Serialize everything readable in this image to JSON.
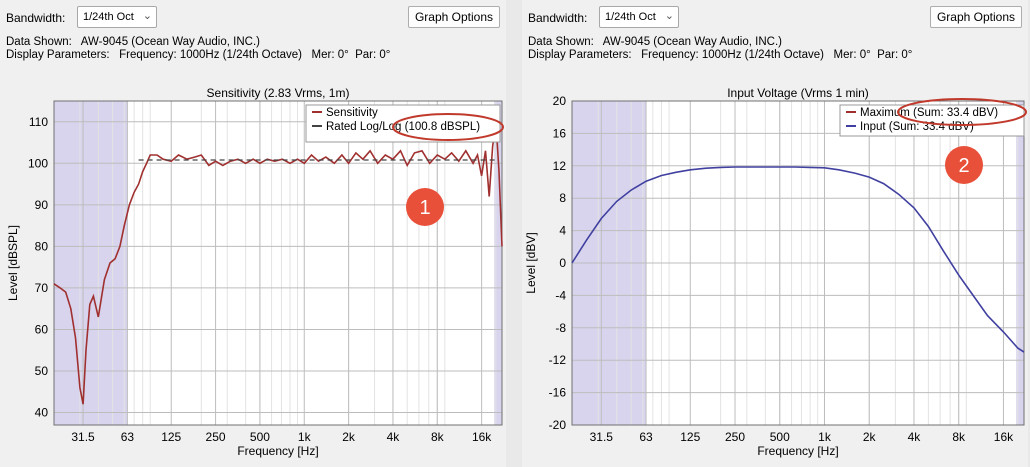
{
  "panels": [
    {
      "bandwidth_label": "Bandwidth:",
      "bandwidth_value": "1/24th Oct",
      "graph_options": "Graph Options",
      "data_shown": "Data Shown:   AW-9045 (Ocean Way Audio, INC.)",
      "display_params": "Display Parameters:   Frequency: 1000Hz (1/24th Octave)   Mer: 0°  Par: 0°"
    },
    {
      "bandwidth_label": "Bandwidth:",
      "bandwidth_value": "1/24th Oct",
      "graph_options": "Graph Options",
      "data_shown": "Data Shown:   AW-9045 (Ocean Way Audio, INC.)",
      "display_params": "Display Parameters:   Frequency: 1000Hz (1/24th Octave)   Mer: 0°  Par: 0°"
    }
  ],
  "chart_data": [
    {
      "type": "line",
      "title": "Sensitivity (2.83 Vrms, 1m)",
      "xlabel": "Frequency [Hz]",
      "ylabel": "Level [dBSPL]",
      "x_scale": "log",
      "xlim": [
        20,
        22000
      ],
      "ylim": [
        37,
        115
      ],
      "x_ticks": [
        31.5,
        63,
        125,
        250,
        500,
        1000,
        2000,
        4000,
        8000,
        16000
      ],
      "x_tick_labels": [
        "31.5",
        "63",
        "125",
        "250",
        "500",
        "1k",
        "2k",
        "4k",
        "8k",
        "16k"
      ],
      "y_ticks": [
        40,
        50,
        60,
        70,
        80,
        90,
        100,
        110
      ],
      "y_tick_labels": [
        "40",
        "50",
        "60",
        "70",
        "80",
        "90",
        "100",
        "110"
      ],
      "shaded_ranges": [
        [
          20,
          63
        ],
        [
          19500,
          22000
        ]
      ],
      "legend_position": "top-right",
      "series": [
        {
          "name": "Sensitivity",
          "color": "#a0302f",
          "style": "solid",
          "x": [
            20,
            22,
            24,
            26,
            28,
            30,
            31.5,
            33,
            35,
            37,
            40,
            44,
            48,
            52,
            56,
            60,
            65,
            70,
            75,
            80,
            85,
            90,
            100,
            110,
            125,
            140,
            160,
            180,
            200,
            225,
            250,
            280,
            315,
            355,
            400,
            450,
            500,
            560,
            630,
            710,
            800,
            900,
            1000,
            1120,
            1250,
            1400,
            1600,
            1800,
            2000,
            2240,
            2500,
            2800,
            3150,
            3550,
            4000,
            4500,
            5000,
            5600,
            6300,
            7100,
            8000,
            9000,
            10000,
            11200,
            12500,
            14000,
            15000,
            16000,
            17000,
            18000,
            19000,
            20000,
            21000,
            22000
          ],
          "y": [
            71,
            70,
            69,
            65,
            58,
            46,
            42,
            55,
            66,
            68,
            63,
            72,
            76,
            77,
            80,
            85,
            90,
            93,
            95,
            98,
            100,
            102,
            102,
            101,
            100.5,
            102,
            101,
            101.5,
            102,
            99.5,
            100.5,
            99.5,
            100.5,
            101,
            100,
            101,
            100,
            101,
            100.5,
            101,
            100,
            101,
            100,
            102,
            100.5,
            101.5,
            100,
            102,
            100,
            102.5,
            101,
            103,
            100,
            102,
            101,
            103,
            99.5,
            102.5,
            103,
            100,
            102,
            101,
            102.5,
            100.5,
            103,
            100,
            102,
            97,
            103,
            92,
            104,
            110,
            98,
            80
          ]
        },
        {
          "name": "Rated Log/Log (100.8 dBSPL)",
          "color": "#444444",
          "style": "dashed",
          "x": [
            75,
            20000
          ],
          "y": [
            100.8,
            100.8
          ]
        }
      ],
      "annotation": "1"
    },
    {
      "type": "line",
      "title": "Input Voltage (Vrms 1 min)",
      "xlabel": "Frequency [Hz]",
      "ylabel": "Level [dBV]",
      "x_scale": "log",
      "xlim": [
        20,
        22000
      ],
      "ylim": [
        -20,
        20
      ],
      "x_ticks": [
        31.5,
        63,
        125,
        250,
        500,
        1000,
        2000,
        4000,
        8000,
        16000
      ],
      "x_tick_labels": [
        "31.5",
        "63",
        "125",
        "250",
        "500",
        "1k",
        "2k",
        "4k",
        "8k",
        "16k"
      ],
      "y_ticks": [
        -20,
        -16,
        -12,
        -8,
        -4,
        0,
        4,
        8,
        12,
        16,
        20
      ],
      "y_tick_labels": [
        "-20",
        "-16",
        "-12",
        "-8",
        "-4",
        "0",
        "4",
        "8",
        "12",
        "16",
        "20"
      ],
      "shaded_ranges": [
        [
          20,
          63
        ],
        [
          19500,
          22000
        ]
      ],
      "legend_position": "top-right",
      "series": [
        {
          "name": "Maximum (Sum: 33.4 dBV)",
          "color": "#a0302f",
          "style": "solid",
          "x": [],
          "y": []
        },
        {
          "name": "Input (Sum: 33.4 dBV)",
          "color": "#4040a0",
          "style": "solid",
          "x": [
            20,
            25,
            31.5,
            40,
            50,
            63,
            80,
            100,
            125,
            160,
            200,
            250,
            315,
            400,
            500,
            630,
            800,
            1000,
            1250,
            1600,
            2000,
            2500,
            3150,
            4000,
            5000,
            6300,
            8000,
            10000,
            12500,
            16000,
            20000,
            22000
          ],
          "y": [
            0,
            2.8,
            5.5,
            7.6,
            9.0,
            10.1,
            10.8,
            11.2,
            11.5,
            11.7,
            11.8,
            11.85,
            11.85,
            11.85,
            11.85,
            11.85,
            11.8,
            11.75,
            11.5,
            11.1,
            10.6,
            9.8,
            8.5,
            6.8,
            4.5,
            1.5,
            -1.5,
            -4.0,
            -6.5,
            -8.5,
            -10.5,
            -11
          ]
        }
      ],
      "annotation": "2"
    }
  ]
}
